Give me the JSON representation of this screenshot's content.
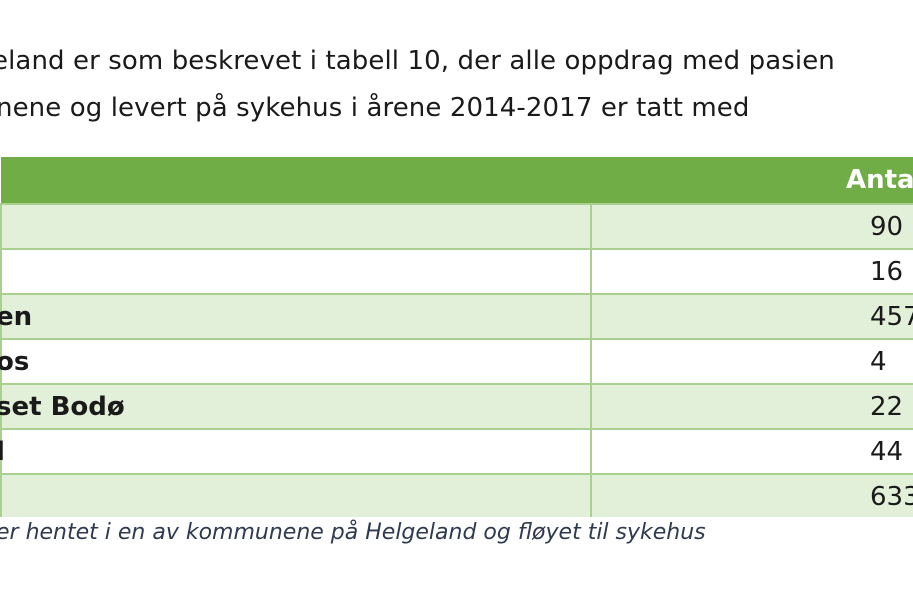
{
  "intro": {
    "line1": "eland er som beskrevet i tabell 10, der alle oppdrag med pasien",
    "line2": "nene og levert på sykehus i årene 2014-2017 er tatt med"
  },
  "table": {
    "header_left": "",
    "header_right": "Anta",
    "rows": [
      {
        "name": "",
        "value": "90"
      },
      {
        "name": "",
        "value": "16"
      },
      {
        "name": "en",
        "value": "457"
      },
      {
        "name": "os",
        "value": "4"
      },
      {
        "name": "set Bodø",
        "value": "22"
      },
      {
        "name": "l",
        "value": "44"
      },
      {
        "name": "",
        "value": "633"
      }
    ]
  },
  "footnote": "er hentet i en av kommunene på Helgeland og fløyet til sykehus",
  "colors": {
    "header_bg": "#70ad47",
    "band_bg": "#e2efd9",
    "border": "#a9d08e"
  }
}
